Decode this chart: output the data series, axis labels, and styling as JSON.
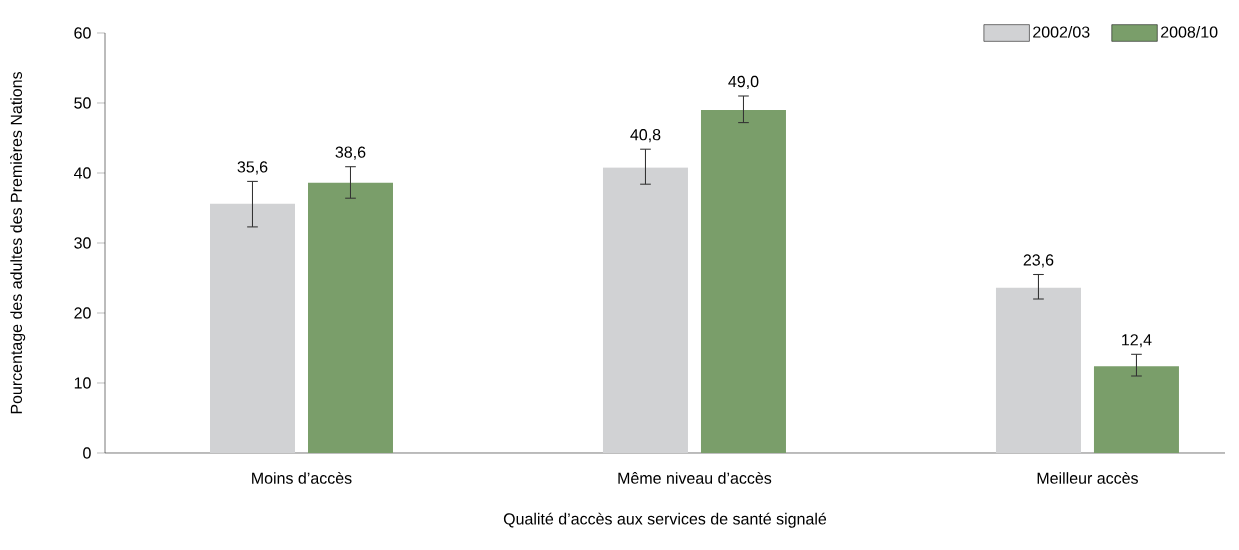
{
  "chart_data": {
    "type": "bar",
    "xlabel": "Qualité d’accès aux services de santé signalé",
    "ylabel": "Pourcentage des adultes des Premières Nations",
    "categories": [
      "Moins d’accès",
      "Même niveau d’accès",
      "Meilleur accès"
    ],
    "series": [
      {
        "name": "2002/03",
        "color": "#d1d2d4",
        "values": [
          35.6,
          40.8,
          23.6
        ],
        "value_labels": [
          "35,6",
          "40,8",
          "23,6"
        ],
        "errors": [
          [
            32.3,
            38.8
          ],
          [
            38.4,
            43.4
          ],
          [
            22.0,
            25.5
          ]
        ]
      },
      {
        "name": "2008/10",
        "color": "#7a9e6a",
        "values": [
          38.6,
          49.0,
          12.4
        ],
        "value_labels": [
          "38,6",
          "49,0",
          "12,4"
        ],
        "errors": [
          [
            36.4,
            40.9
          ],
          [
            47.2,
            51.0
          ],
          [
            11.0,
            14.1
          ]
        ]
      }
    ],
    "ylim": [
      0,
      60
    ],
    "yticks": [
      0,
      10,
      20,
      30,
      40,
      50,
      60
    ],
    "grid": false,
    "legend": "top right"
  }
}
